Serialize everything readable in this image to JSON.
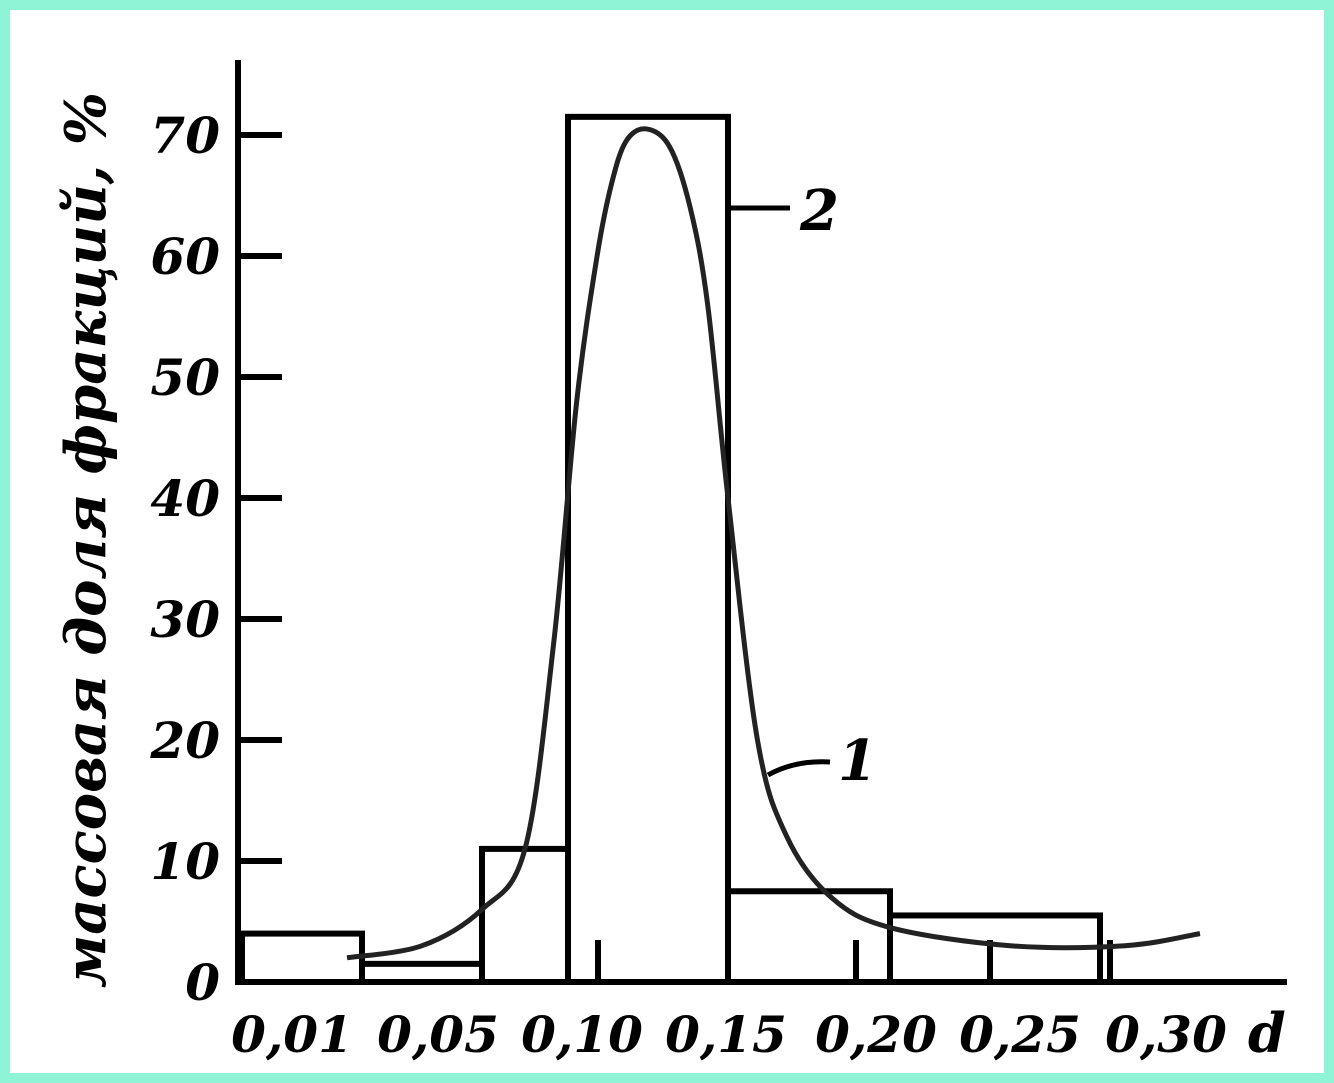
{
  "colors": {
    "border": "#8ff3d6",
    "ink": "#000000",
    "curve": "#222222"
  },
  "chart_data": {
    "type": "bar",
    "title": "",
    "ylabel": "массовая доля фракций, %",
    "xlabel": "d",
    "ylim": [
      0,
      75
    ],
    "yticks": [
      "0",
      "10",
      "20",
      "30",
      "40",
      "50",
      "60",
      "70"
    ],
    "xtick_labels": [
      "0,01",
      "0,05",
      "0,10",
      "0,15",
      "0,20",
      "0,25",
      "0,30"
    ],
    "series": [
      {
        "name": "2",
        "kind": "histogram",
        "bins": [
          {
            "from": 0.0,
            "to": 0.04,
            "value": 4
          },
          {
            "from": 0.04,
            "to": 0.08,
            "value": 1.5
          },
          {
            "from": 0.08,
            "to": 0.11,
            "value": 11
          },
          {
            "from": 0.11,
            "to": 0.165,
            "value": 71.5
          },
          {
            "from": 0.165,
            "to": 0.22,
            "value": 7.5
          },
          {
            "from": 0.22,
            "to": 0.29,
            "value": 5.5
          }
        ]
      },
      {
        "name": "1",
        "kind": "curve",
        "x": [
          0.035,
          0.06,
          0.08,
          0.095,
          0.105,
          0.113,
          0.12,
          0.125,
          0.13,
          0.137,
          0.145,
          0.152,
          0.158,
          0.165,
          0.175,
          0.185,
          0.2,
          0.22,
          0.26,
          0.3,
          0.33
        ],
        "y": [
          2,
          3,
          6,
          11,
          28,
          48,
          60,
          66,
          69.5,
          70.5,
          69,
          64,
          56,
          40,
          20,
          12,
          7,
          4.5,
          3,
          3,
          4
        ]
      }
    ],
    "annotations": [
      "1",
      "2"
    ]
  }
}
